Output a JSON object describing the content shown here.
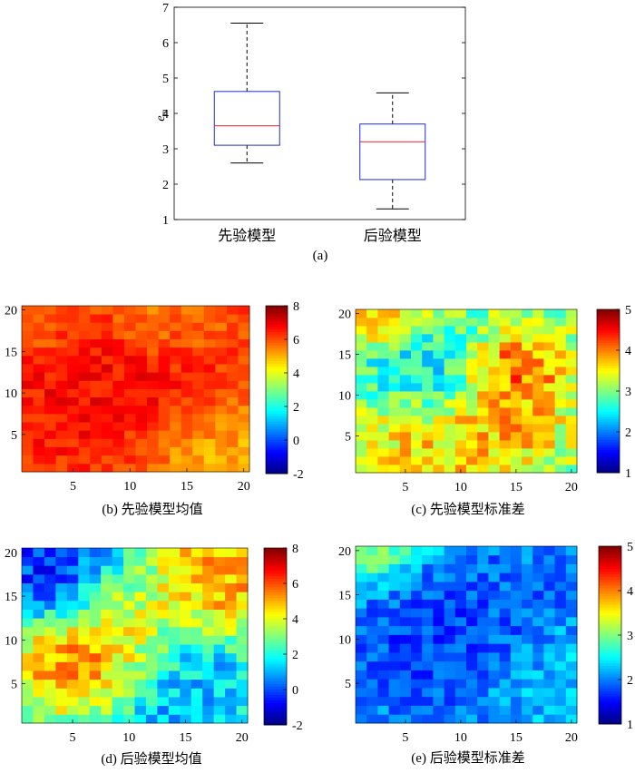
{
  "colors": {
    "box_edge": "#1f2bd1",
    "median": "#e8202a",
    "whisker": "#000000",
    "jet": [
      "#00007f",
      "#0000ff",
      "#007fff",
      "#00ffff",
      "#7fff7f",
      "#ffff00",
      "#ff7f00",
      "#ff0000",
      "#7f0000"
    ]
  },
  "chart_data": [
    {
      "id": "a",
      "type": "box",
      "caption": "(a)",
      "ylabel": "e",
      "ylabel_sub": "m",
      "ylim": [
        1,
        7
      ],
      "yticks": [
        1,
        2,
        3,
        4,
        5,
        6,
        7
      ],
      "categories": [
        "先验模型",
        "后验模型"
      ],
      "boxes": [
        {
          "whisker_low": 2.6,
          "q1": 3.1,
          "median": 3.65,
          "q3": 4.62,
          "whisker_high": 6.55
        },
        {
          "whisker_low": 1.3,
          "q1": 2.13,
          "median": 3.2,
          "q3": 3.7,
          "whisker_high": 4.58
        }
      ]
    },
    {
      "id": "b",
      "type": "heatmap",
      "caption": "(b) 先验模型均值",
      "grid": [
        20,
        20
      ],
      "xticks": [
        5,
        10,
        15,
        20
      ],
      "yticks": [
        5,
        10,
        15,
        20
      ],
      "clim": [
        -2,
        8
      ],
      "cticks": [
        -2,
        0,
        2,
        4,
        6,
        8
      ],
      "seed": 11,
      "field": [
        {
          "x": 8,
          "y": 11,
          "r": 5.5,
          "v": 6.9
        },
        {
          "x": 18,
          "y": 2,
          "r": 4,
          "v": 4.7
        },
        {
          "x": 13,
          "y": 19,
          "r": 3,
          "v": 5.3
        },
        {
          "x": 1,
          "y": 19,
          "r": 2.5,
          "v": 5.2
        }
      ],
      "base": 6.1,
      "noise": 0.5
    },
    {
      "id": "c",
      "type": "heatmap",
      "caption": "(c) 先验模型标准差",
      "grid": [
        20,
        20
      ],
      "xticks": [
        5,
        10,
        15,
        20
      ],
      "yticks": [
        5,
        10,
        15,
        20
      ],
      "clim": [
        1,
        5
      ],
      "cticks": [
        1,
        2,
        3,
        4,
        5
      ],
      "seed": 23,
      "field": [
        {
          "x": 15,
          "y": 13,
          "r": 2.5,
          "v": 4.4
        },
        {
          "x": 14,
          "y": 7,
          "r": 2.8,
          "v": 4.0
        },
        {
          "x": 3,
          "y": 20,
          "r": 2.5,
          "v": 4.3
        },
        {
          "x": 6,
          "y": 14,
          "r": 3.5,
          "v": 2.3
        },
        {
          "x": 10,
          "y": 2,
          "r": 3,
          "v": 3.8
        },
        {
          "x": 3,
          "y": 4,
          "r": 3,
          "v": 3.7
        }
      ],
      "base": 3.1,
      "noise": 0.45
    },
    {
      "id": "d",
      "type": "heatmap",
      "caption": "(d) 后验模型均值",
      "grid": [
        20,
        20
      ],
      "xticks": [
        5,
        10,
        15,
        20
      ],
      "yticks": [
        5,
        10,
        15,
        20
      ],
      "clim": [
        -2,
        8
      ],
      "cticks": [
        -2,
        0,
        2,
        4,
        6,
        8
      ],
      "seed": 37,
      "field": [
        {
          "x": 3,
          "y": 18,
          "r": 4,
          "v": -1.3
        },
        {
          "x": 6,
          "y": 8,
          "r": 3.5,
          "v": 6.8
        },
        {
          "x": 18,
          "y": 17,
          "r": 3.5,
          "v": 5.8
        },
        {
          "x": 15,
          "y": 3,
          "r": 4.5,
          "v": 0.6
        },
        {
          "x": 10,
          "y": 14,
          "r": 3,
          "v": 4.0
        }
      ],
      "base": 2.6,
      "noise": 1.0
    },
    {
      "id": "e",
      "type": "heatmap",
      "caption": "(e) 后验模型标准差",
      "grid": [
        20,
        20
      ],
      "xticks": [
        5,
        10,
        15,
        20
      ],
      "yticks": [
        5,
        10,
        15,
        20
      ],
      "clim": [
        1,
        5
      ],
      "cticks": [
        1,
        2,
        3,
        4,
        5
      ],
      "seed": 53,
      "field": [
        {
          "x": 8,
          "y": 10,
          "r": 6,
          "v": 1.5
        },
        {
          "x": 2,
          "y": 20,
          "r": 2.5,
          "v": 3.4
        },
        {
          "x": 17,
          "y": 17,
          "r": 3,
          "v": 1.8
        },
        {
          "x": 17,
          "y": 5,
          "r": 3,
          "v": 2.3
        }
      ],
      "base": 2.45,
      "noise": 0.3
    }
  ]
}
